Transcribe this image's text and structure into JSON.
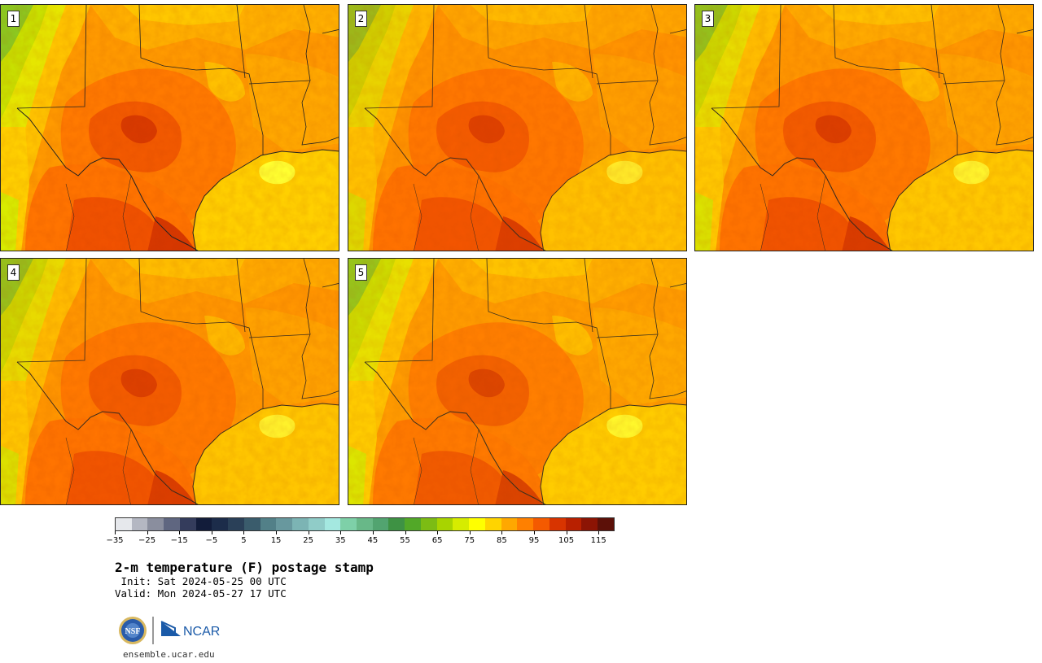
{
  "panels": [
    {
      "label": "1"
    },
    {
      "label": "2"
    },
    {
      "label": "3"
    },
    {
      "label": "4"
    },
    {
      "label": "5"
    }
  ],
  "colorbar": {
    "colors": [
      "#e6e8ec",
      "#b4b7c2",
      "#8a8e9e",
      "#5f6680",
      "#343c5c",
      "#121c3a",
      "#1c2c4a",
      "#2a4058",
      "#3a5c6c",
      "#528088",
      "#68989e",
      "#7cb4b4",
      "#90ccc8",
      "#a4e8e0",
      "#7ed0a8",
      "#68b888",
      "#52a470",
      "#3e9244",
      "#52a828",
      "#7cbc14",
      "#a8d400",
      "#d6ec00",
      "#ffff00",
      "#ffd400",
      "#ffa800",
      "#ff8000",
      "#f45a00",
      "#d83400",
      "#b82000",
      "#8c1404",
      "#5c1008"
    ],
    "tick_labels": [
      "−35",
      "−25",
      "−15",
      "−5",
      "5",
      "15",
      "25",
      "35",
      "45",
      "55",
      "65",
      "75",
      "85",
      "95",
      "105",
      "115"
    ]
  },
  "title": "2-m temperature (F) postage stamp",
  "init_line": " Init: Sat 2024-05-25 00 UTC",
  "valid_line": "Valid: Mon 2024-05-27 17 UTC",
  "logos": {
    "nsf": "NSF",
    "ncar": "NCAR"
  },
  "website": "ensemble.ucar.edu"
}
